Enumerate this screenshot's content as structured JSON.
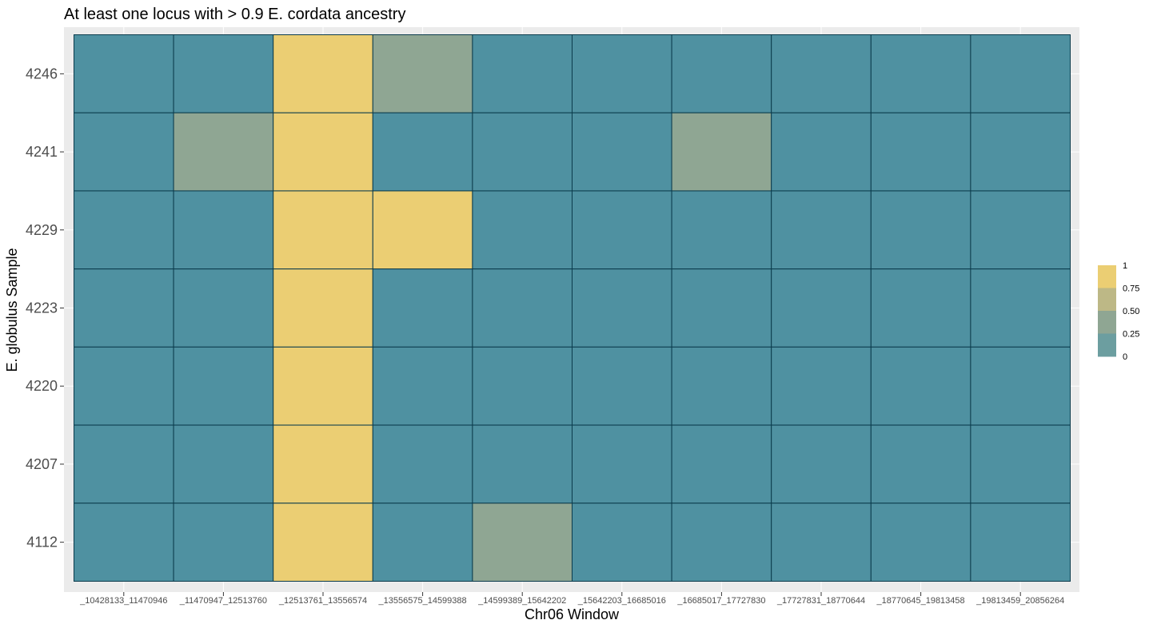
{
  "chart_data": {
    "type": "heatmap",
    "title": "At least one locus with > 0.9 E. cordata ancestry",
    "xlabel": "Chr06 Window",
    "ylabel": "E. globulus Sample",
    "x_categories": [
      "_10428133_11470946",
      "_11470947_12513760",
      "_12513761_13556574",
      "_13556575_14599388",
      "_14599389_15642202",
      "_15642203_16685016",
      "_16685017_17727830",
      "_17727831_18770644",
      "_18770645_19813458",
      "_19813459_20856264"
    ],
    "x_tick_labels": [
      "_10428133_11470946",
      "_11470947_12513760",
      "_12513761_13556574",
      "_13556575_14599388",
      "_14599389_15642202",
      "_15642203_16685016",
      "_16685017_17727830",
      "_17727831_18770644",
      "_18770645_19813458",
      "_19813459_20856264"
    ],
    "y_categories": [
      "4246",
      "4241",
      "4229",
      "4223",
      "4220",
      "4207",
      "4112"
    ],
    "values": [
      [
        0,
        0,
        1,
        0.5,
        0,
        0,
        0,
        0,
        0,
        0
      ],
      [
        0,
        0.5,
        1,
        0,
        0,
        0,
        0.5,
        0,
        0,
        0
      ],
      [
        0,
        0,
        1,
        1,
        0,
        0,
        0,
        0,
        0,
        0
      ],
      [
        0,
        0,
        1,
        0,
        0,
        0,
        0,
        0,
        0,
        0
      ],
      [
        0,
        0,
        1,
        0,
        0,
        0,
        0,
        0,
        0,
        0
      ],
      [
        0,
        0,
        1,
        0,
        0,
        0,
        0,
        0,
        0,
        0
      ],
      [
        0,
        0,
        1,
        0,
        0.5,
        0,
        0,
        0,
        0,
        0
      ]
    ],
    "color_scale": {
      "breaks": [
        "1",
        "0.75",
        "0.50",
        "0.25",
        "0"
      ],
      "colors": [
        "#EBCE73",
        "#BDB886",
        "#8FA693",
        "#6C9EA0",
        "#4F91A1"
      ],
      "low": "#4F91A1",
      "mid": "#8FA693",
      "high": "#EBCE73"
    },
    "legend_position": "right",
    "grid": true,
    "panel_background": "#EBEBEB",
    "tile_border": "#0B3B4C"
  }
}
